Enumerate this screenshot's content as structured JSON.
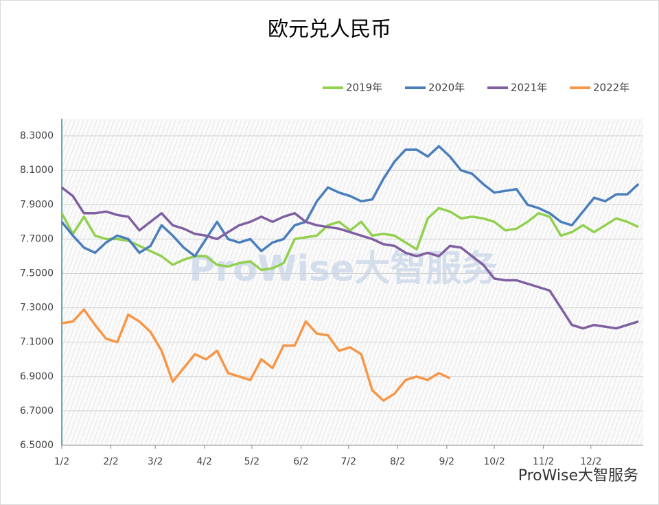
{
  "chart_data": {
    "type": "line",
    "title": "欧元兑人民币",
    "watermark": "ProWise大智服务",
    "x": [
      1,
      8,
      15,
      22,
      29,
      36,
      43,
      50,
      57,
      64,
      71,
      78,
      85,
      92,
      99,
      106,
      113,
      120,
      127,
      134,
      141,
      148,
      155,
      162,
      169,
      176,
      183,
      190,
      197,
      204,
      211,
      218,
      225,
      232,
      239,
      246,
      253,
      260,
      267,
      274,
      281,
      288,
      295,
      302,
      309,
      316,
      323,
      330,
      337,
      344,
      351,
      358,
      365
    ],
    "series": [
      {
        "name": "2019年",
        "color": "#92d050",
        "values": [
          7.85,
          7.73,
          7.83,
          7.72,
          7.7,
          7.7,
          7.69,
          7.66,
          7.63,
          7.6,
          7.55,
          7.58,
          7.6,
          7.6,
          7.55,
          7.54,
          7.56,
          7.57,
          7.52,
          7.53,
          7.56,
          7.7,
          7.71,
          7.72,
          7.78,
          7.8,
          7.75,
          7.8,
          7.72,
          7.73,
          7.72,
          7.68,
          7.64,
          7.82,
          7.88,
          7.86,
          7.82,
          7.83,
          7.82,
          7.8,
          7.75,
          7.76,
          7.8,
          7.85,
          7.83,
          7.72,
          7.74,
          7.78,
          7.74,
          7.78,
          7.82,
          7.8,
          7.77
        ]
      },
      {
        "name": "2020年",
        "color": "#4a7ebb",
        "values": [
          7.8,
          7.72,
          7.65,
          7.62,
          7.68,
          7.72,
          7.7,
          7.62,
          7.66,
          7.78,
          7.72,
          7.65,
          7.6,
          7.7,
          7.8,
          7.7,
          7.68,
          7.7,
          7.63,
          7.68,
          7.7,
          7.78,
          7.8,
          7.92,
          8.0,
          7.97,
          7.95,
          7.92,
          7.93,
          8.05,
          8.15,
          8.22,
          8.22,
          8.18,
          8.24,
          8.18,
          8.1,
          8.08,
          8.02,
          7.97,
          7.98,
          7.99,
          7.9,
          7.88,
          7.85,
          7.8,
          7.78,
          7.86,
          7.94,
          7.92,
          7.96,
          7.96,
          8.02
        ]
      },
      {
        "name": "2021年",
        "color": "#7f5fa0",
        "values": [
          8.0,
          7.95,
          7.85,
          7.85,
          7.86,
          7.84,
          7.83,
          7.75,
          7.8,
          7.85,
          7.78,
          7.76,
          7.73,
          7.72,
          7.7,
          7.74,
          7.78,
          7.8,
          7.83,
          7.8,
          7.83,
          7.85,
          7.8,
          7.78,
          7.77,
          7.76,
          7.74,
          7.72,
          7.7,
          7.67,
          7.66,
          7.62,
          7.6,
          7.62,
          7.6,
          7.66,
          7.65,
          7.6,
          7.55,
          7.47,
          7.46,
          7.46,
          7.44,
          7.42,
          7.4,
          7.3,
          7.2,
          7.18,
          7.2,
          7.19,
          7.18,
          7.2,
          7.22
        ]
      },
      {
        "name": "2022年",
        "color": "#f79646",
        "values": [
          7.21,
          7.22,
          7.29,
          7.2,
          7.12,
          7.1,
          7.26,
          7.22,
          7.16,
          7.05,
          6.87,
          6.95,
          7.03,
          7.0,
          7.05,
          6.92,
          6.9,
          6.88,
          7.0,
          6.95,
          7.08,
          7.08,
          7.22,
          7.15,
          7.14,
          7.05,
          7.07,
          7.03,
          6.82,
          6.76,
          6.8,
          6.88,
          6.9,
          6.88,
          6.92,
          6.89,
          null,
          null,
          null,
          null,
          null,
          null,
          null,
          null,
          null,
          null,
          null,
          null,
          null,
          null,
          null,
          null,
          null
        ]
      }
    ],
    "xlim": [
      1,
      368
    ],
    "xticks": [
      {
        "value": 1,
        "label": "1/2"
      },
      {
        "value": 32,
        "label": "2/2"
      },
      {
        "value": 60,
        "label": "3/2"
      },
      {
        "value": 91,
        "label": "4/2"
      },
      {
        "value": 121,
        "label": "5/2"
      },
      {
        "value": 152,
        "label": "6/2"
      },
      {
        "value": 182,
        "label": "7/2"
      },
      {
        "value": 213,
        "label": "8/2"
      },
      {
        "value": 244,
        "label": "9/2"
      },
      {
        "value": 274,
        "label": "10/2"
      },
      {
        "value": 305,
        "label": "11/2"
      },
      {
        "value": 335,
        "label": "12/2"
      }
    ],
    "ylim": [
      6.5,
      8.4
    ],
    "yticks": [
      {
        "value": 6.5,
        "label": "6.5000"
      },
      {
        "value": 6.7,
        "label": "6.7000"
      },
      {
        "value": 6.9,
        "label": "6.9000"
      },
      {
        "value": 7.1,
        "label": "7.1000"
      },
      {
        "value": 7.3,
        "label": "7.3000"
      },
      {
        "value": 7.5,
        "label": "7.5000"
      },
      {
        "value": 7.7,
        "label": "7.7000"
      },
      {
        "value": 7.9,
        "label": "7.9000"
      },
      {
        "value": 8.1,
        "label": "8.1000"
      },
      {
        "value": 8.3,
        "label": "8.3000"
      }
    ],
    "grid": true,
    "legend": "top-right"
  }
}
